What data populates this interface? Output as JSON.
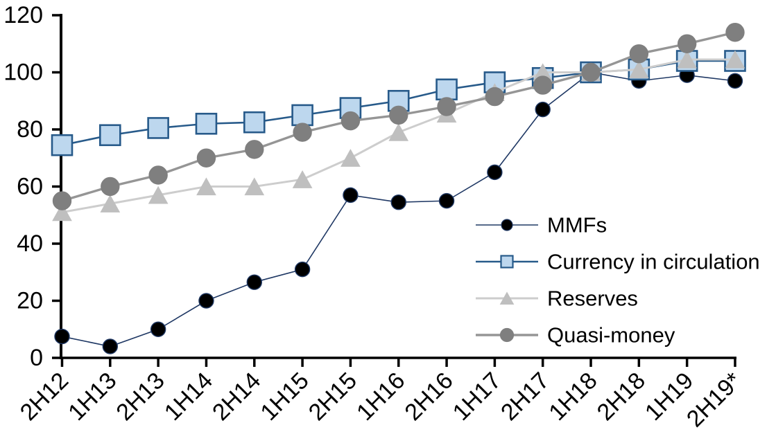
{
  "chart_data": {
    "type": "line",
    "title": "",
    "categories": [
      "2H12",
      "1H13",
      "2H13",
      "1H14",
      "2H14",
      "1H15",
      "2H15",
      "1H16",
      "2H16",
      "1H17",
      "2H17",
      "1H18",
      "2H18",
      "1H19",
      "2H19*"
    ],
    "series": [
      {
        "name": "MMFs",
        "values": [
          7.5,
          4,
          10,
          20,
          26.5,
          31,
          57,
          54.5,
          55,
          65,
          87,
          100,
          97,
          99,
          97
        ],
        "marker": "circle",
        "marker_fill": "#000000",
        "marker_stroke": "#1F3864",
        "line_color": "#1F3864",
        "line_width": 1.6,
        "marker_size": 21
      },
      {
        "name": "Currency in circulation",
        "values": [
          74.5,
          78,
          80.5,
          82,
          82.5,
          85,
          87.5,
          90,
          94,
          96.5,
          98,
          100,
          101,
          104,
          104
        ],
        "marker": "square",
        "marker_fill": "#BDD7EE",
        "marker_stroke": "#275A8A",
        "line_color": "#275A8A",
        "line_width": 2.6,
        "marker_size": 29
      },
      {
        "name": "Reserves",
        "values": [
          51,
          54,
          57,
          60,
          60,
          62.5,
          70,
          79,
          85.5,
          93,
          100,
          100,
          101,
          104.5,
          104.5
        ],
        "marker": "triangle",
        "marker_fill": "#BFBFBF",
        "marker_stroke": "#BFBFBF",
        "line_color": "#CDCDCD",
        "line_width": 3,
        "marker_size": 27
      },
      {
        "name": "Quasi-money",
        "values": [
          55,
          60,
          64,
          70,
          73,
          79,
          83,
          85,
          88,
          91.5,
          95.5,
          100,
          106.5,
          110,
          114
        ],
        "marker": "circle",
        "marker_fill": "#7F7F7F",
        "marker_stroke": "#7F7F7F",
        "line_color": "#959595",
        "line_width": 3.4,
        "marker_size": 26
      }
    ],
    "xlabel": "",
    "ylabel": "",
    "ylim": [
      0,
      120
    ],
    "y_ticks": [
      0,
      20,
      40,
      60,
      80,
      100,
      120
    ],
    "x_tick_rotation": 45,
    "grid": false,
    "legend_position": "inside-right",
    "axis_color": "#000000",
    "background": "#FFFFFF"
  }
}
